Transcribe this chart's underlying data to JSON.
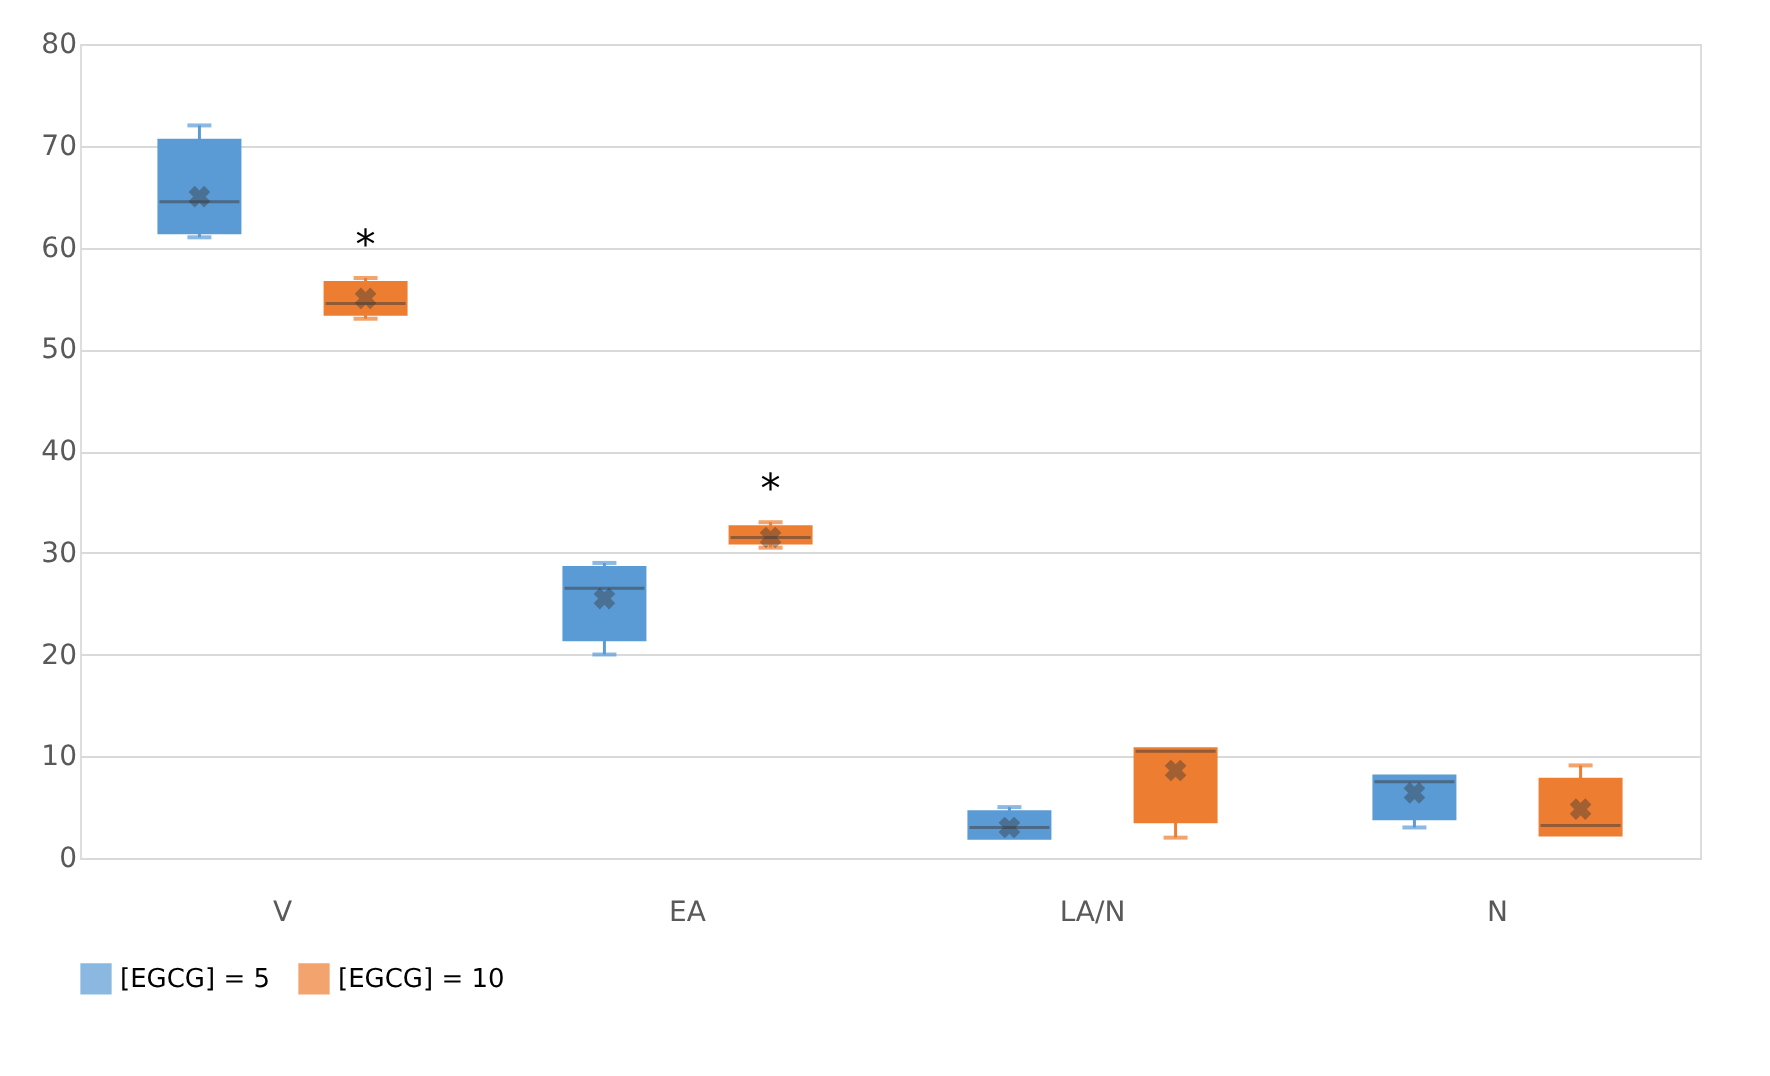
{
  "chart_data": {
    "type": "box",
    "categories": [
      "V",
      "EA",
      "LA/N",
      "N"
    ],
    "series": [
      {
        "name": "[EGCG] = 5",
        "color": "#5b9bd5",
        "boxes": [
          {
            "low": 61,
            "q1": 61.5,
            "median": 64.5,
            "q3": 70.5,
            "high": 72,
            "mean": 65
          },
          {
            "low": 20,
            "q1": 21.5,
            "median": 26.5,
            "q3": 28.5,
            "high": 29,
            "mean": 25.5
          },
          {
            "low": 2,
            "q1": 2,
            "median": 3,
            "q3": 4.5,
            "high": 5,
            "mean": 3
          },
          {
            "low": 3,
            "q1": 3.9,
            "median": 7.5,
            "q3": 8,
            "high": 8,
            "mean": 6.4
          }
        ]
      },
      {
        "name": "[EGCG] = 10",
        "color": "#ed7d31",
        "boxes": [
          {
            "low": 53,
            "q1": 53.5,
            "median": 54.5,
            "q3": 56.5,
            "high": 57,
            "mean": 55
          },
          {
            "low": 30.5,
            "q1": 31,
            "median": 31.5,
            "q3": 32.5,
            "high": 33,
            "mean": 31.5
          },
          {
            "low": 2,
            "q1": 3.6,
            "median": 10.5,
            "q3": 10.7,
            "high": 10.7,
            "mean": 8.6
          },
          {
            "low": 2.3,
            "q1": 2.3,
            "median": 3.2,
            "q3": 7.7,
            "high": 9.1,
            "mean": 4.8
          }
        ]
      }
    ],
    "ylim": [
      0,
      80
    ],
    "yticks": [
      0,
      10,
      20,
      30,
      40,
      50,
      60,
      70,
      80
    ],
    "grid": "y",
    "legend": "bottom",
    "annotations": [
      "*",
      "*"
    ]
  }
}
